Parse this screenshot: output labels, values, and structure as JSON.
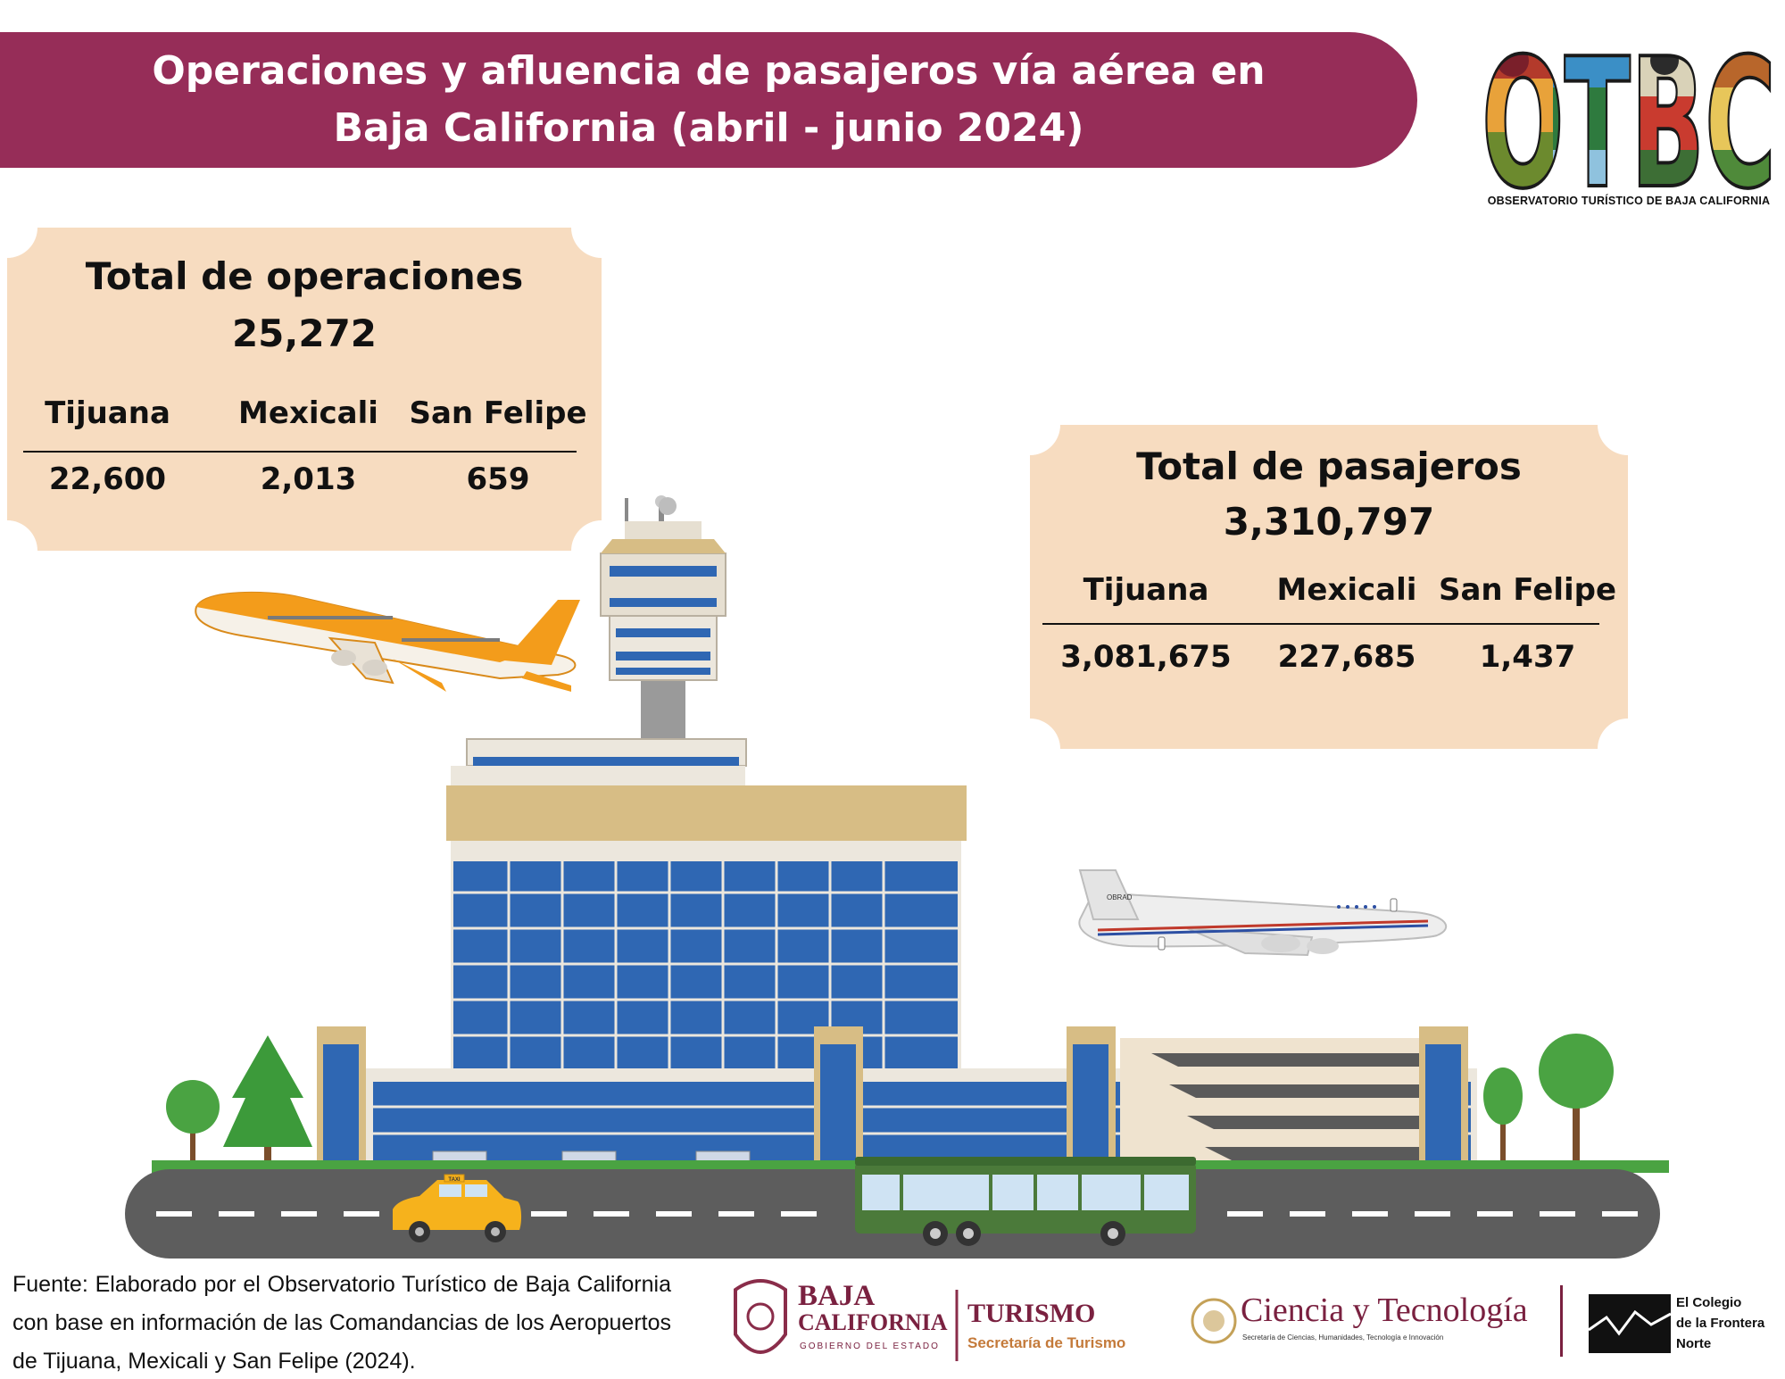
{
  "header": {
    "title_line1": "Operaciones y afluencia de pasajeros vía aérea en",
    "title_line2": "Baja California (abril - junio 2024)"
  },
  "logo": {
    "letters": "OTBC",
    "caption": "OBSERVATORIO TURÍSTICO DE BAJA CALIFORNIA"
  },
  "operations": {
    "title": "Total de operaciones",
    "total": "25,272",
    "airports": [
      {
        "name": "Tijuana",
        "value": "22,600"
      },
      {
        "name": "Mexicali",
        "value": "2,013"
      },
      {
        "name": "San Felipe",
        "value": "659"
      }
    ]
  },
  "passengers": {
    "title": "Total de pasajeros",
    "total": "3,310,797",
    "airports": [
      {
        "name": "Tijuana",
        "value": "3,081,675"
      },
      {
        "name": "Mexicali",
        "value": "227,685"
      },
      {
        "name": "San Felipe",
        "value": "1,437"
      }
    ]
  },
  "illustration": {
    "taxi_sign": "TAXI",
    "plane_registration": "OBRAD"
  },
  "footer": {
    "source": "Fuente: Elaborado por el Observatorio Turístico de Baja California con base en información de las Comandancias de los Aeropuertos de Tijuana, Mexicali y San Felipe (2024).",
    "bc_line1": "BAJA",
    "bc_line2": "CALIFORNIA",
    "bc_line3": "GOBIERNO DEL ESTADO",
    "turismo_title": "TURISMO",
    "turismo_sub": "Secretaría de Turismo",
    "cyt_title": "Ciencia y Tecnología",
    "cyt_sub": "Secretaría de Ciencias, Humanidades, Tecnología e Innovación",
    "colef_line1": "El Colegio",
    "colef_line2": "de la Frontera",
    "colef_line3": "Norte"
  },
  "colors": {
    "banner": "#962d58",
    "ticket": "#f7dcc0",
    "building_glass": "#2f67b3",
    "building_cap": "#d7bd85",
    "road": "#5d5d5d",
    "grass": "#4aa342",
    "plane_orange": "#f39c1b",
    "taxi": "#f6b21c",
    "bus": "#4b7a3a"
  }
}
